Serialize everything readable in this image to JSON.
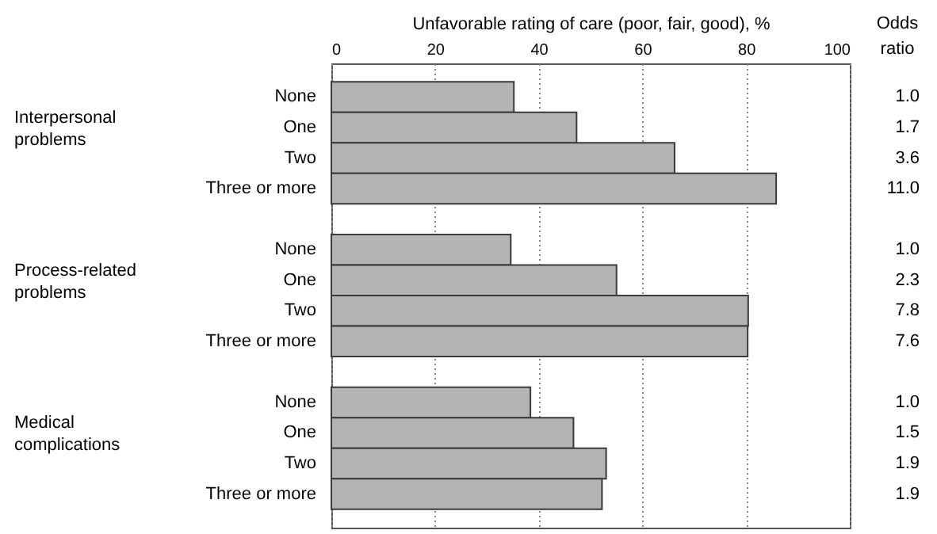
{
  "chart_data": {
    "type": "bar",
    "orientation": "horizontal",
    "xlabel": "Unfavorable rating of care (poor, fair, good), %",
    "categories": [
      "None",
      "One",
      "Two",
      "Three or more",
      null,
      "None",
      "One",
      "Two",
      "Three or more",
      null,
      "None",
      "One",
      "Two",
      "Three or more"
    ],
    "values": [
      35.2,
      47.3,
      66.2,
      85.8,
      null,
      34.6,
      55.0,
      80.4,
      80.3,
      null,
      38.4,
      46.7,
      53.0,
      52.2
    ],
    "color": "#b4b4b4",
    "xlim": [
      0,
      100
    ],
    "xticks": [
      0,
      20,
      40,
      60,
      80,
      100
    ],
    "grid": "x",
    "annotations": [
      "Odds ratio",
      "Interpersonal problems",
      "Process-related problems",
      "Medical complications",
      "1.0",
      "1.7",
      "3.6",
      "11.0",
      "1.0",
      "2.3",
      "7.8",
      "7.6",
      "1.0",
      "1.5",
      "1.9",
      "1.9"
    ]
  }
}
